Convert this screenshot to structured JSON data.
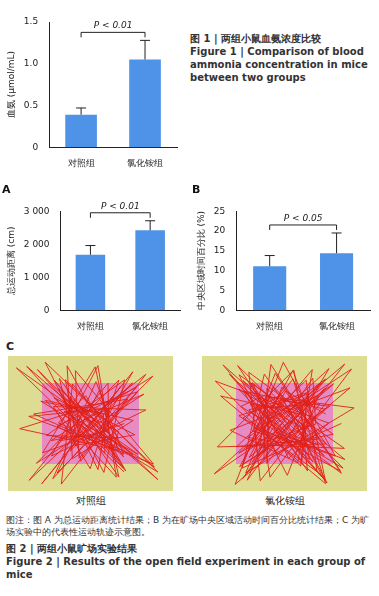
{
  "chart_data": [
    {
      "type": "bar",
      "y_label": "血氨 (μmol/mL)",
      "categories": [
        "对照组",
        "氯化铵组"
      ],
      "values": [
        0.39,
        1.05
      ],
      "errors": [
        0.08,
        0.23
      ],
      "color": "#4f93e8",
      "ylim": [
        0,
        1.5
      ],
      "yticks": [
        0,
        0.5,
        {
          "value": 1,
          "label": "1.0"
        },
        1.5
      ],
      "grid": false,
      "annotations": [
        {
          "text": "P < 0.01"
        }
      ]
    },
    {
      "type": "bar",
      "title": "A",
      "y_label": "总运动距离 (cm)",
      "categories": [
        "对照组",
        "氯化铵组"
      ],
      "values": [
        1680,
        2420
      ],
      "errors": [
        280,
        290
      ],
      "color": "#4f93e8",
      "ylim": [
        0,
        3000
      ],
      "yticks": [
        0,
        {
          "value": 1000,
          "label": "1 000"
        },
        {
          "value": 2000,
          "label": "2 000"
        },
        {
          "value": 3000,
          "label": "3 000"
        }
      ],
      "grid": false,
      "annotations": [
        {
          "text": "P < 0.01"
        }
      ]
    },
    {
      "type": "bar",
      "title": "B",
      "y_label": "中央区域时间百分比 (%)",
      "categories": [
        "对照组",
        "氯化铵组"
      ],
      "values": [
        11.1,
        14.4
      ],
      "errors": [
        2.7,
        5.1
      ],
      "color": "#4f93e8",
      "ylim": [
        0,
        25
      ],
      "yticks": [
        0,
        5,
        10,
        15,
        20,
        25
      ],
      "grid": false,
      "annotations": [
        {
          "text": "P < 0.05"
        }
      ]
    }
  ],
  "figure1_caption": [
    "图 1 | 两组小鼠血氨浓度比较",
    "Figure 1 | Comparison of blood ammonia concentration in mice between two groups"
  ],
  "panel_c": {
    "label": "C",
    "groups": [
      "对照组",
      "氯化铵组"
    ]
  },
  "figure2_note": "图注：图 A 为总运动距离统计结果；B 为在旷场中央区域活动时间百分比统计结果；C 为旷场实验中的代表性运动轨迹示意图。",
  "figure2_caption": [
    "图 2 | 两组小鼠旷场实验结果",
    "Figure 2 | Results of the open field experiment in each group of mice"
  ]
}
